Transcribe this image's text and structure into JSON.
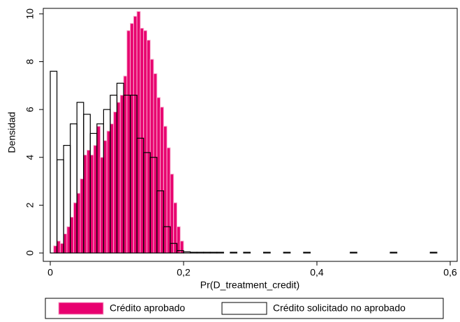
{
  "chart_data": {
    "type": "histogram",
    "xlabel": "Pr(D_treatment_credit)",
    "ylabel": "Densidad",
    "xlim": [
      -0.0105,
      0.6105
    ],
    "ylim": [
      -0.35,
      10.23
    ],
    "xticks": [
      {
        "value": 0,
        "label": "0"
      },
      {
        "value": 0.2,
        "label": "0,2"
      },
      {
        "value": 0.4,
        "label": "0,4"
      },
      {
        "value": 0.6,
        "label": "0,6"
      }
    ],
    "yticks": [
      0,
      2,
      4,
      6,
      8,
      10
    ],
    "legend_position": "bottom",
    "series": [
      {
        "name": "Crédito aprobado",
        "color": "#e8006f",
        "edgecolor": "#f7b0cf",
        "filled": true,
        "bins": [
          0.005,
          0.01,
          0.015,
          0.02,
          0.025,
          0.03,
          0.035,
          0.04,
          0.045,
          0.05,
          0.055,
          0.06,
          0.065,
          0.07,
          0.075,
          0.08,
          0.085,
          0.09,
          0.095,
          0.1,
          0.105,
          0.11,
          0.115,
          0.12,
          0.125,
          0.13,
          0.135,
          0.14,
          0.145,
          0.15,
          0.155,
          0.16,
          0.165,
          0.17,
          0.175,
          0.18,
          0.185,
          0.19,
          0.195,
          0.2
        ],
        "values": [
          0.3,
          0.5,
          0.4,
          0.8,
          1.1,
          1.5,
          2.1,
          2.5,
          3.1,
          4.1,
          4.3,
          4.1,
          4.5,
          5.3,
          4.0,
          4.7,
          5.1,
          5.4,
          5.9,
          6.3,
          6.6,
          7.4,
          9.3,
          9.6,
          9.9,
          10.1,
          9.4,
          9.3,
          8.9,
          8.1,
          7.5,
          6.5,
          6.1,
          5.3,
          4.4,
          3.3,
          2.1,
          1.1,
          0.5
        ]
      },
      {
        "name": "Crédito solicitado no aprobado",
        "color": "#ffffff",
        "edgecolor": "#000000",
        "filled": false,
        "bins": [
          0,
          0.01,
          0.02,
          0.03,
          0.04,
          0.05,
          0.06,
          0.07,
          0.08,
          0.09,
          0.1,
          0.11,
          0.12,
          0.13,
          0.14,
          0.15,
          0.16,
          0.17,
          0.18,
          0.19,
          0.2,
          0.21,
          0.22,
          0.23,
          0.24,
          0.25,
          0.26,
          0.27,
          0.28,
          0.29,
          0.3,
          0.31,
          0.32,
          0.33,
          0.34,
          0.35,
          0.36,
          0.37,
          0.38,
          0.39,
          0.4,
          0.41,
          0.42,
          0.43,
          0.44,
          0.45,
          0.46,
          0.47,
          0.48,
          0.49,
          0.5,
          0.51,
          0.52,
          0.53,
          0.54,
          0.55,
          0.56,
          0.57,
          0.58
        ],
        "values": [
          7.6,
          3.9,
          4.5,
          5.4,
          6.3,
          5.8,
          5.0,
          5.4,
          6.0,
          6.6,
          7.1,
          6.6,
          6.6,
          4.8,
          4.2,
          4.0,
          2.6,
          1.1,
          0.4,
          0.1,
          0.05,
          0.03,
          0.03,
          0.03,
          0.03,
          0.03,
          0,
          0.03,
          0,
          0.03,
          0,
          0,
          0.03,
          0,
          0,
          0.03,
          0,
          0,
          0.03,
          0,
          0,
          0,
          0,
          0,
          0,
          0.03,
          0,
          0,
          0,
          0,
          0,
          0.03,
          0,
          0,
          0,
          0,
          0,
          0.03
        ]
      }
    ]
  }
}
